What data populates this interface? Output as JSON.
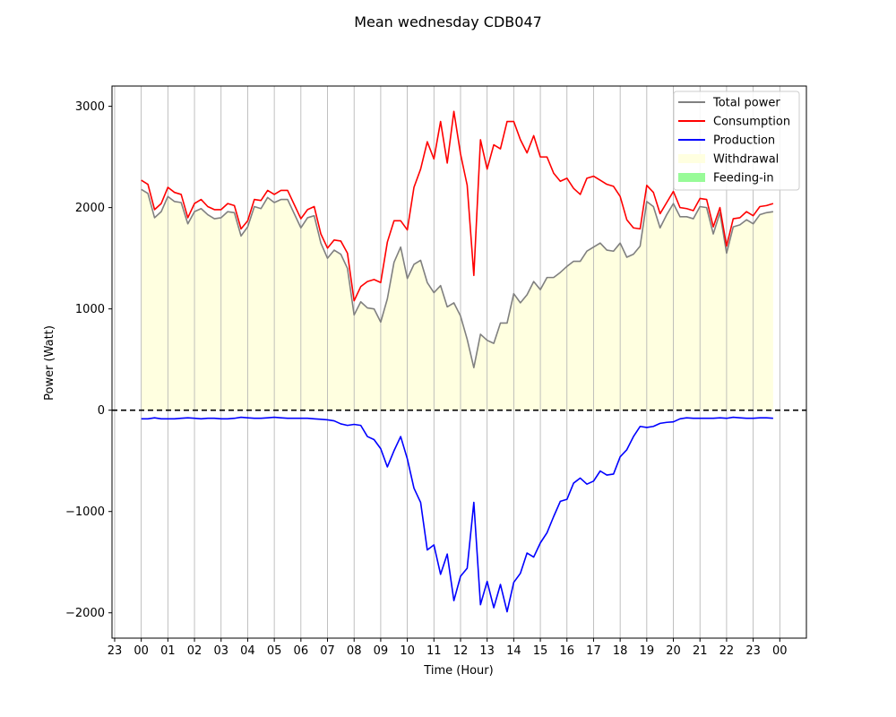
{
  "chart_data": {
    "type": "line",
    "title": "Mean wednesday CDB047",
    "xlabel": "Time (Hour)",
    "ylabel": "Power (Watt)",
    "ylim": [
      -2250,
      3200
    ],
    "xlim_hours": [
      -1.1,
      25.0
    ],
    "grid": "vertical",
    "legend_position": "top-right",
    "x_tick_labels": [
      "23",
      "00",
      "01",
      "02",
      "03",
      "04",
      "05",
      "06",
      "07",
      "08",
      "09",
      "10",
      "11",
      "12",
      "13",
      "14",
      "15",
      "16",
      "17",
      "18",
      "19",
      "20",
      "21",
      "22",
      "23",
      "00"
    ],
    "y_ticks": [
      -2000,
      -1000,
      0,
      1000,
      2000,
      3000
    ],
    "y_tick_labels": [
      "−2000",
      "−1000",
      "0",
      "1000",
      "2000",
      "3000"
    ],
    "reference_line": 0,
    "x_step_hours": 0.25,
    "series": [
      {
        "name": "Total power",
        "color": "#808080",
        "values": [
          2180,
          2140,
          1900,
          1960,
          2110,
          2060,
          2050,
          1840,
          1960,
          1990,
          1930,
          1890,
          1900,
          1960,
          1950,
          1720,
          1810,
          2010,
          1990,
          2100,
          2050,
          2080,
          2080,
          1940,
          1800,
          1900,
          1920,
          1650,
          1500,
          1580,
          1540,
          1400,
          940,
          1070,
          1010,
          1000,
          870,
          1100,
          1460,
          1610,
          1300,
          1440,
          1480,
          1260,
          1160,
          1230,
          1020,
          1060,
          930,
          700,
          420,
          750,
          690,
          660,
          860,
          860,
          1150,
          1060,
          1140,
          1270,
          1190,
          1310,
          1310,
          1360,
          1420,
          1470,
          1470,
          1570,
          1610,
          1650,
          1580,
          1570,
          1650,
          1510,
          1540,
          1620,
          2060,
          2010,
          1800,
          1930,
          2040,
          1910,
          1910,
          1890,
          2010,
          2000,
          1740,
          1950,
          1550,
          1810,
          1830,
          1880,
          1840,
          1930,
          1950,
          1960
        ]
      },
      {
        "name": "Consumption",
        "color": "#ff0000",
        "values": [
          2270,
          2230,
          1980,
          2040,
          2200,
          2150,
          2130,
          1900,
          2040,
          2080,
          2010,
          1980,
          1980,
          2040,
          2020,
          1790,
          1870,
          2080,
          2070,
          2170,
          2130,
          2170,
          2170,
          2030,
          1890,
          1980,
          2010,
          1740,
          1600,
          1680,
          1670,
          1550,
          1080,
          1220,
          1270,
          1290,
          1260,
          1660,
          1870,
          1870,
          1780,
          2200,
          2380,
          2650,
          2480,
          2850,
          2440,
          2950,
          2530,
          2220,
          1330,
          2670,
          2380,
          2620,
          2580,
          2850,
          2850,
          2670,
          2540,
          2710,
          2500,
          2500,
          2340,
          2260,
          2290,
          2190,
          2130,
          2290,
          2310,
          2270,
          2230,
          2210,
          2110,
          1880,
          1800,
          1790,
          2220,
          2150,
          1940,
          2050,
          2160,
          2000,
          1990,
          1970,
          2090,
          2080,
          1810,
          2000,
          1620,
          1890,
          1900,
          1960,
          1920,
          2010,
          2020,
          2040
        ]
      },
      {
        "name": "Production",
        "color": "#0000ff",
        "values": [
          -85,
          -85,
          -75,
          -85,
          -85,
          -85,
          -80,
          -75,
          -80,
          -85,
          -80,
          -80,
          -85,
          -85,
          -80,
          -70,
          -75,
          -80,
          -80,
          -75,
          -70,
          -75,
          -80,
          -80,
          -80,
          -80,
          -85,
          -90,
          -95,
          -105,
          -135,
          -150,
          -140,
          -150,
          -260,
          -290,
          -380,
          -560,
          -400,
          -260,
          -480,
          -770,
          -910,
          -1380,
          -1330,
          -1620,
          -1420,
          -1880,
          -1640,
          -1560,
          -910,
          -1920,
          -1690,
          -1950,
          -1720,
          -1990,
          -1700,
          -1610,
          -1410,
          -1450,
          -1310,
          -1210,
          -1050,
          -900,
          -880,
          -720,
          -670,
          -730,
          -700,
          -600,
          -640,
          -630,
          -460,
          -390,
          -260,
          -160,
          -170,
          -160,
          -130,
          -120,
          -115,
          -85,
          -75,
          -80,
          -80,
          -80,
          -80,
          -75,
          -80,
          -70,
          -75,
          -80,
          -80,
          -75,
          -75,
          -80
        ]
      }
    ],
    "fills": [
      {
        "name": "Withdrawal",
        "color": "#ffffe0"
      },
      {
        "name": "Feeding-in",
        "color": "#98fb98"
      }
    ]
  }
}
